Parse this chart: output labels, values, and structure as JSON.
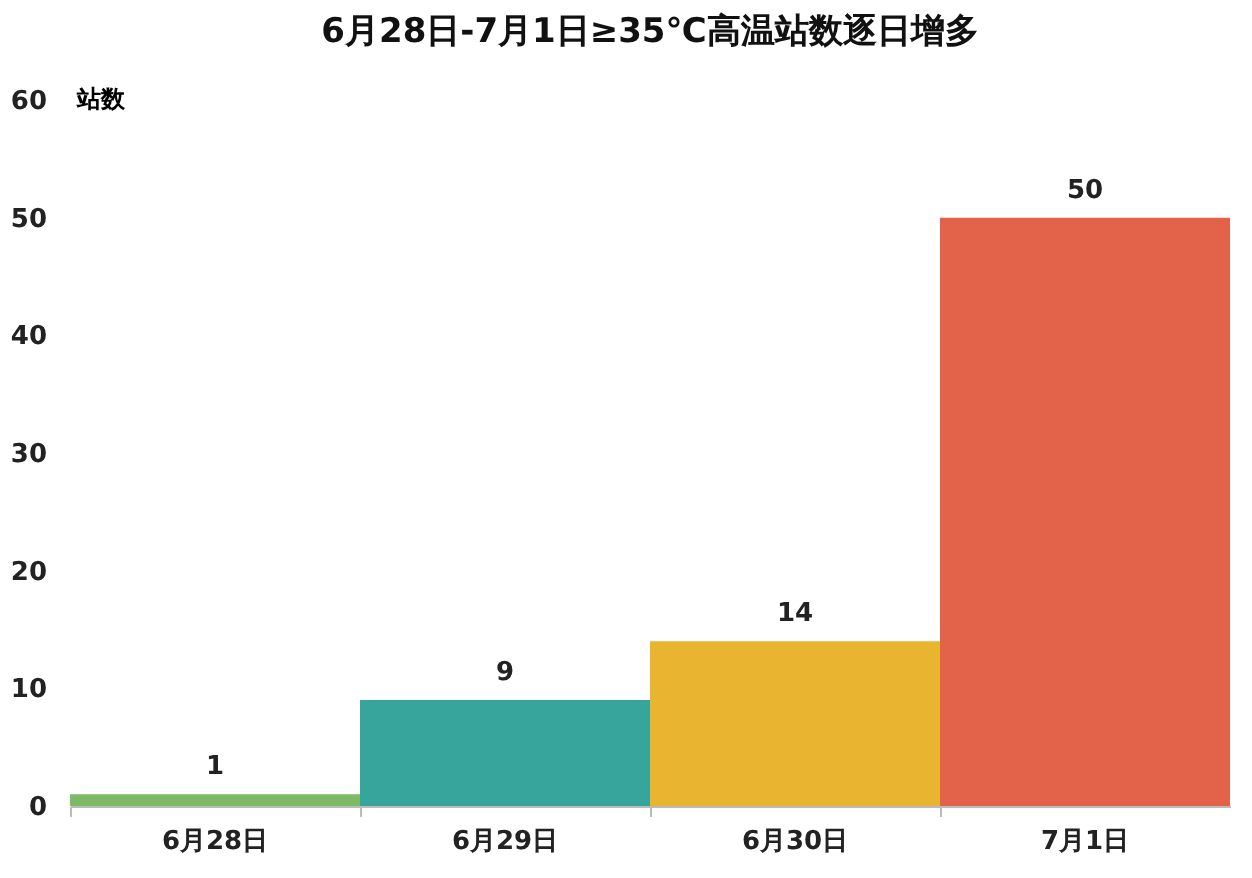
{
  "chart_data": {
    "type": "bar",
    "title": "6月28日-7月1日≥35℃高温站数逐日增多",
    "ylabel": "站数",
    "categories": [
      "6月28日",
      "6月29日",
      "6月30日",
      "7月1日"
    ],
    "values": [
      1,
      9,
      14,
      50
    ],
    "colors": [
      "#7dba67",
      "#37a59b",
      "#e9b42f",
      "#e2634a"
    ],
    "ylim": [
      0,
      60
    ],
    "yticks": [
      0,
      10,
      20,
      30,
      40,
      50,
      60
    ],
    "grid": false,
    "data_labels": true
  }
}
